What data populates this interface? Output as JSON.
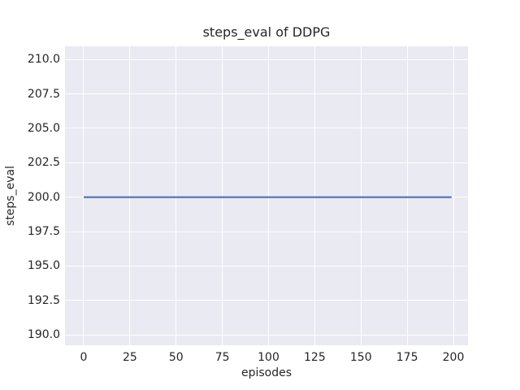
{
  "figure": {
    "colors": {
      "figure_bg": "#ffffff",
      "plot_bg": "#eaeaf2",
      "grid": "#ffffff",
      "line": "#4c72b0",
      "text": "#262626"
    }
  },
  "chart_data": {
    "type": "line",
    "title": "steps_eval of DDPG",
    "xlabel": "episodes",
    "ylabel": "steps_eval",
    "xlim": [
      -10.1,
      207.9
    ],
    "ylim": [
      189.25,
      210.95
    ],
    "grid": true,
    "legend": "none",
    "xticks": {
      "values": [
        0,
        25,
        50,
        75,
        100,
        125,
        150,
        175,
        200
      ],
      "labels": [
        "0",
        "25",
        "50",
        "75",
        "100",
        "125",
        "150",
        "175",
        "200"
      ]
    },
    "yticks": {
      "values": [
        190.0,
        192.5,
        195.0,
        197.5,
        200.0,
        202.5,
        205.0,
        207.5,
        210.0
      ],
      "labels": [
        "190.0",
        "192.5",
        "195.0",
        "197.5",
        "200.0",
        "202.5",
        "205.0",
        "207.5",
        "210.0"
      ]
    },
    "series": [
      {
        "name": "DDPG",
        "color": "#4c72b0",
        "line_width": 2.2,
        "x": [
          0,
          199
        ],
        "y": [
          200,
          200
        ],
        "description": "constant steps_eval = 200 across episodes 0 to 199"
      }
    ]
  }
}
